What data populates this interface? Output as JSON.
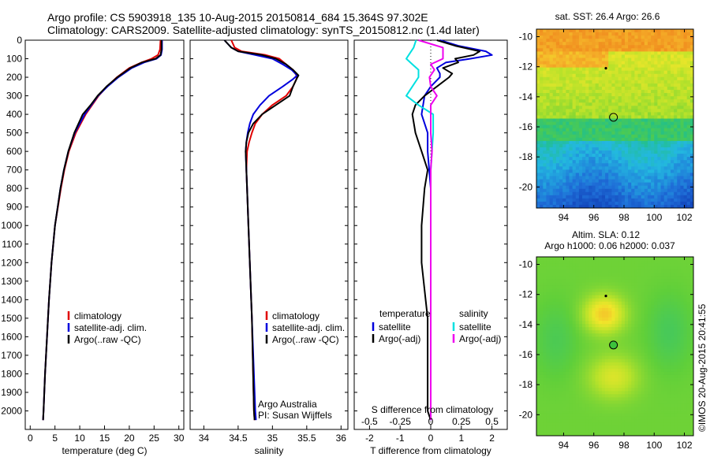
{
  "header": {
    "line1": "Argo profile: CS 5903918_135 10-Aug-2015 20150814_684 15.364S 97.302E",
    "line2": "Climatology: CARS2009. Satellite-adjusted climatology: synTS_20150812.nc (1.4d later)"
  },
  "watermark": "©IMOS 20-Aug-2015 20:41:55",
  "colors": {
    "climatology": "#e00000",
    "satellite": "#0000dd",
    "argo": "#000000",
    "sat_salinity": "#00e0e0",
    "argo_salinity": "#ee00ee"
  },
  "chart_data": [
    {
      "type": "line",
      "id": "temperature",
      "xlabel": "temperature (deg C)",
      "ylabel": "",
      "xlim": [
        -1,
        31
      ],
      "ylim": [
        2100,
        0
      ],
      "xticks": [
        "0",
        "5",
        "10",
        "15",
        "20",
        "25",
        "30"
      ],
      "yticks": [
        "0",
        "100",
        "200",
        "300",
        "400",
        "500",
        "600",
        "700",
        "800",
        "900",
        "1000",
        "1100",
        "1200",
        "1300",
        "1400",
        "1500",
        "1600",
        "1700",
        "1800",
        "1900",
        "2000"
      ],
      "legend": [
        "climatology",
        "satellite-adj. clim.",
        "Argo(..raw -QC)"
      ],
      "series": [
        {
          "name": "climatology",
          "color": "#e00000",
          "depth": [
            0,
            50,
            80,
            100,
            120,
            150,
            200,
            250,
            300,
            400,
            500,
            600,
            700,
            800,
            1000,
            1200,
            1400,
            1600,
            1800,
            2000,
            2050
          ],
          "values": [
            26.3,
            26.2,
            25.8,
            24.5,
            22.5,
            20.0,
            17.5,
            15.5,
            13.8,
            11.2,
            9.2,
            7.8,
            6.9,
            6.2,
            5.0,
            4.3,
            3.8,
            3.4,
            3.0,
            2.7,
            2.6
          ]
        },
        {
          "name": "satellite-adj. clim.",
          "color": "#0000dd",
          "depth": [
            0,
            50,
            80,
            100,
            120,
            150,
            200,
            250,
            300,
            400,
            500,
            600,
            700,
            800,
            1000,
            1200,
            1400,
            1600,
            1800,
            2000,
            2050
          ],
          "values": [
            26.6,
            26.6,
            26.4,
            25.5,
            23.0,
            20.5,
            17.8,
            15.6,
            13.7,
            11.0,
            9.0,
            7.7,
            6.8,
            6.1,
            5.0,
            4.3,
            3.8,
            3.4,
            3.0,
            2.7,
            2.6
          ]
        },
        {
          "name": "Argo(..raw -QC)",
          "color": "#000000",
          "depth": [
            0,
            50,
            80,
            100,
            120,
            150,
            200,
            250,
            300,
            350,
            400,
            500,
            600,
            700,
            800,
            1000,
            1200,
            1400,
            1600,
            1800,
            2000,
            2050
          ],
          "values": [
            26.5,
            26.5,
            26.3,
            25.3,
            22.6,
            20.2,
            17.6,
            15.4,
            13.6,
            12.2,
            10.6,
            8.9,
            7.7,
            6.8,
            6.1,
            5.0,
            4.3,
            3.8,
            3.4,
            3.0,
            2.7,
            2.6
          ]
        }
      ]
    },
    {
      "type": "line",
      "id": "salinity",
      "xlabel": "salinity",
      "xlim": [
        33.8,
        36.1
      ],
      "ylim": [
        2100,
        0
      ],
      "xticks": [
        "34",
        "34.5",
        "35",
        "35.5",
        "36"
      ],
      "legend": [
        "climatology",
        "satellite-adj. clim.",
        "Argo(..raw -QC)"
      ],
      "credits": [
        "Argo Australia",
        "PI: Susan Wijffels"
      ],
      "series": [
        {
          "name": "climatology",
          "color": "#e00000",
          "depth": [
            0,
            40,
            60,
            80,
            100,
            130,
            160,
            190,
            210,
            250,
            300,
            350,
            400,
            450,
            500,
            550,
            600,
            700,
            800,
            1000,
            1500,
            2000,
            2050
          ],
          "values": [
            34.4,
            34.45,
            34.55,
            34.9,
            35.1,
            35.2,
            35.3,
            35.35,
            35.35,
            35.3,
            35.2,
            35.0,
            34.85,
            34.75,
            34.7,
            34.66,
            34.63,
            34.62,
            34.63,
            34.65,
            34.7,
            34.73,
            34.74
          ]
        },
        {
          "name": "satellite-adj. clim.",
          "color": "#0000dd",
          "depth": [
            0,
            40,
            60,
            80,
            100,
            130,
            160,
            190,
            210,
            250,
            300,
            350,
            400,
            450,
            500,
            550,
            600,
            700,
            800,
            1000,
            1500,
            2000,
            2050
          ],
          "values": [
            34.3,
            34.4,
            34.5,
            34.75,
            35.0,
            35.15,
            35.28,
            35.36,
            35.3,
            35.15,
            34.95,
            34.82,
            34.72,
            34.67,
            34.64,
            34.62,
            34.61,
            34.62,
            34.63,
            34.65,
            34.7,
            34.75,
            34.76
          ]
        },
        {
          "name": "Argo(..raw -QC)",
          "color": "#000000",
          "depth": [
            0,
            40,
            60,
            80,
            100,
            130,
            160,
            190,
            210,
            250,
            300,
            350,
            400,
            450,
            500,
            550,
            600,
            700,
            800,
            1000,
            1500,
            2000,
            2050
          ],
          "values": [
            34.3,
            34.4,
            34.5,
            34.85,
            35.05,
            35.2,
            35.3,
            35.38,
            35.35,
            35.3,
            35.25,
            35.05,
            34.85,
            34.72,
            34.65,
            34.62,
            34.61,
            34.62,
            34.63,
            34.65,
            34.7,
            34.73,
            34.74
          ]
        }
      ]
    },
    {
      "type": "line",
      "id": "difference",
      "xlabel": "T difference from climatology",
      "xlabel_top": "S difference from climatology",
      "xlim": [
        -2.5,
        2.5
      ],
      "ylim": [
        2100,
        0
      ],
      "xticks": [
        "-2",
        "-1",
        "0",
        "1",
        "2"
      ],
      "xticks_s": [
        "-0.5",
        "-0.25",
        "0",
        "0.25",
        "0.5"
      ],
      "legend_t": {
        "title": "temperature",
        "items": [
          "satellite",
          "Argo(-adj)"
        ]
      },
      "legend_s": {
        "title": "salinity",
        "items": [
          "satellite",
          "Argo(-adj)"
        ]
      },
      "series": [
        {
          "name": "T satellite",
          "color": "#0000dd",
          "depth": [
            0,
            30,
            60,
            80,
            100,
            120,
            150,
            180,
            200,
            250,
            300,
            400,
            500,
            600,
            800,
            1000,
            1500,
            2000,
            2050
          ],
          "values": [
            0.3,
            0.9,
            1.8,
            2.0,
            1.3,
            0.5,
            0.2,
            0.3,
            0.3,
            0.0,
            -0.2,
            -0.3,
            -0.1,
            -0.1,
            0.0,
            0.0,
            0.0,
            0.0,
            0.0
          ]
        },
        {
          "name": "T Argo(-adj)",
          "color": "#000000",
          "depth": [
            0,
            30,
            60,
            80,
            100,
            120,
            150,
            180,
            200,
            250,
            300,
            350,
            400,
            500,
            600,
            700,
            800,
            1000,
            1200,
            1500,
            2000,
            2050
          ],
          "values": [
            0.2,
            0.8,
            1.6,
            1.4,
            0.8,
            0.9,
            0.4,
            0.7,
            0.6,
            0.2,
            -0.2,
            -0.5,
            -0.6,
            -0.5,
            -0.3,
            -0.1,
            -0.2,
            -0.3,
            -0.3,
            -0.1,
            -0.1,
            0.0
          ]
        },
        {
          "name": "S satellite",
          "color": "#00e0e0",
          "depth": [
            0,
            40,
            80,
            100,
            130,
            160,
            200,
            250,
            300,
            350,
            400,
            500,
            700,
            1000,
            1500,
            2000,
            2050
          ],
          "values": [
            -0.12,
            -0.14,
            -0.18,
            -0.2,
            -0.15,
            -0.1,
            -0.1,
            -0.15,
            -0.2,
            -0.1,
            0.02,
            0.02,
            0.0,
            0.0,
            0.0,
            0.0,
            0.0
          ]
        },
        {
          "name": "S Argo(-adj)",
          "color": "#ee00ee",
          "depth": [
            0,
            40,
            80,
            100,
            130,
            160,
            200,
            250,
            300,
            350,
            400,
            500,
            600,
            700,
            1000,
            1500,
            2000,
            2050
          ],
          "values": [
            -0.1,
            0.1,
            0.1,
            0.1,
            0.0,
            0.03,
            -0.01,
            0.0,
            0.05,
            0.0,
            0.0,
            0.0,
            0.01,
            0.0,
            0.0,
            0.0,
            0.0,
            0.0
          ]
        }
      ]
    },
    {
      "type": "heatmap",
      "id": "sst-map",
      "title": "sat. SST: 26.4  Argo: 26.6",
      "xlim": [
        92.2,
        102.6
      ],
      "ylim": [
        -21.4,
        -9.5
      ],
      "xticks": [
        "94",
        "96",
        "98",
        "100",
        "102"
      ],
      "yticks": [
        "-10",
        "-12",
        "-14",
        "-16",
        "-18",
        "-20"
      ],
      "profile_location": [
        97.302,
        -15.364
      ],
      "previous_location": [
        96.8,
        -12.1
      ]
    },
    {
      "type": "heatmap",
      "id": "sla-map",
      "title": "Altim. SLA: 0.12",
      "subtitle": "Argo h1000: 0.06 h2000: 0.037",
      "xlim": [
        92.2,
        102.6
      ],
      "ylim": [
        -21.4,
        -9.5
      ],
      "xticks": [
        "94",
        "96",
        "98",
        "100",
        "102"
      ],
      "yticks": [
        "-10",
        "-12",
        "-14",
        "-16",
        "-18",
        "-20"
      ],
      "profile_location": [
        97.302,
        -15.364
      ],
      "previous_location": [
        96.8,
        -12.1
      ]
    }
  ]
}
